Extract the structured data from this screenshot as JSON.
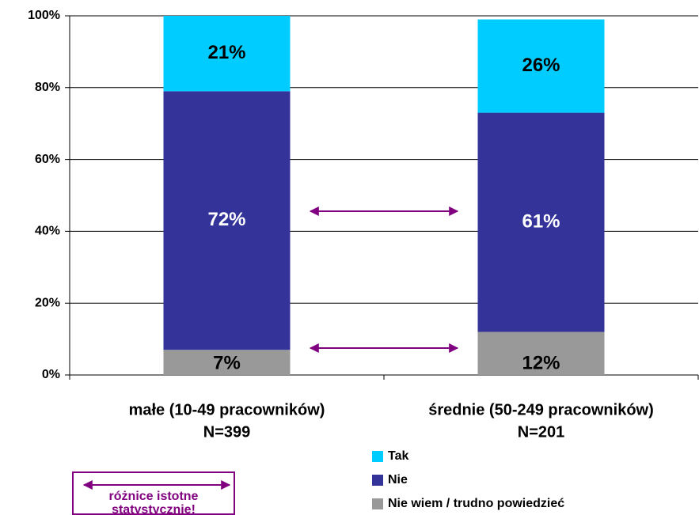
{
  "chart_data": {
    "type": "stacked_bar",
    "categories": [
      [
        "małe (10-49 pracowników)",
        "N=399"
      ],
      [
        "średnie (50-249 pracowników)",
        "N=201"
      ]
    ],
    "series": [
      {
        "name": "Nie wiem / trudno powiedzieć",
        "color": "#999999",
        "label_color": "#000000",
        "values": [
          7,
          12
        ],
        "value_labels": [
          "7%",
          "12%"
        ]
      },
      {
        "name": "Nie",
        "color": "#333399",
        "label_color": "#ffffff",
        "values": [
          72,
          61
        ],
        "value_labels": [
          "72%",
          "61%"
        ]
      },
      {
        "name": "Tak",
        "color": "#00ccff",
        "label_color": "#000000",
        "values": [
          21,
          26
        ],
        "value_labels": [
          "21%",
          "26%"
        ]
      }
    ],
    "ylim": [
      0,
      100
    ],
    "yticks": [
      {
        "value": 0,
        "label": "0%"
      },
      {
        "value": 20,
        "label": "20%"
      },
      {
        "value": 40,
        "label": "40%"
      },
      {
        "value": 60,
        "label": "60%"
      },
      {
        "value": 80,
        "label": "80%"
      },
      {
        "value": 100,
        "label": "100%"
      }
    ],
    "grid": true,
    "annotation": [
      "różnice istotne",
      "statystycznie!"
    ]
  }
}
